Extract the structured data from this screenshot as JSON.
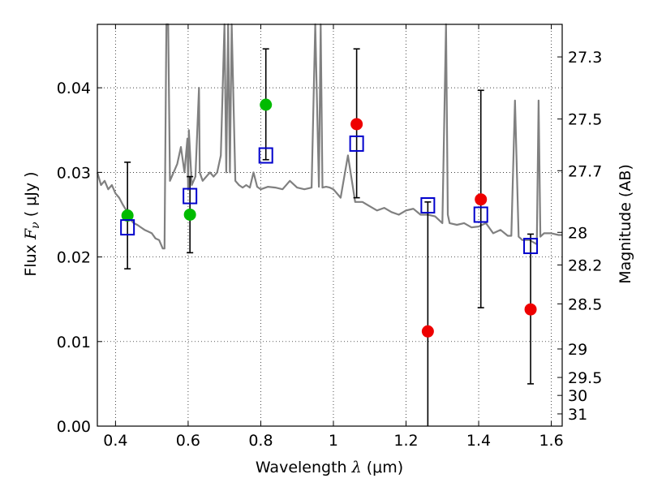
{
  "chart_data": {
    "type": "scatter",
    "title": "",
    "xlabel": "Wavelength  λ (μm)",
    "ylabel": "Flux  F_ν  ( μJy )",
    "ylabel_parts": {
      "prefix": "Flux  ",
      "symbol": "F",
      "subscript": "ν",
      "suffix": "  ( μJy )"
    },
    "xlabel_parts": {
      "prefix": "Wavelength  ",
      "symbol": "λ",
      "suffix": " (μm)"
    },
    "y2label": "Magnitude (AB)",
    "xlim": [
      0.35,
      1.63
    ],
    "ylim": [
      0.0,
      0.0475
    ],
    "grid": true,
    "xticks": [
      0.4,
      0.6,
      0.8,
      1.0,
      1.2,
      1.4,
      1.6
    ],
    "xtick_labels": [
      "0.4",
      "0.6",
      "0.8",
      "1",
      "1.2",
      "1.4",
      "1.6"
    ],
    "yticks": [
      0.0,
      0.01,
      0.02,
      0.03,
      0.04
    ],
    "ytick_labels": [
      "0.00",
      "0.01",
      "0.02",
      "0.03",
      "0.04"
    ],
    "mag_ticks": [
      "27.3",
      "27.5",
      "27.7",
      "28",
      "28.2",
      "28.5",
      "29",
      "29.5",
      "30",
      "31"
    ],
    "colors": {
      "green": "#00bb00",
      "red": "#ee0000",
      "square": "#0000cc",
      "spectrum": "#808080",
      "errorbar": "#000000"
    },
    "series": [
      {
        "type": "errorbar",
        "points": [
          {
            "x": 0.433,
            "y": 0.0249,
            "low": 0.0186,
            "high": 0.0312
          },
          {
            "x": 0.605,
            "y": 0.025,
            "low": 0.0205,
            "high": 0.0295
          },
          {
            "x": 0.814,
            "y": 0.038,
            "low": 0.0315,
            "high": 0.0446
          },
          {
            "x": 1.064,
            "y": 0.0357,
            "low": 0.027,
            "high": 0.0446
          },
          {
            "x": 1.26,
            "y": 0.0112,
            "low": 0.0,
            "high": 0.0265
          },
          {
            "x": 1.406,
            "y": 0.0268,
            "low": 0.014,
            "high": 0.0397
          },
          {
            "x": 1.543,
            "y": 0.0138,
            "low": 0.005,
            "high": 0.0227
          }
        ]
      },
      {
        "marker": "circle",
        "color": "#00bb00",
        "x": [
          0.433,
          0.605,
          0.814
        ],
        "y": [
          0.0249,
          0.025,
          0.038
        ]
      },
      {
        "marker": "circle",
        "color": "#ee0000",
        "x": [
          1.064,
          1.26,
          1.406,
          1.543
        ],
        "y": [
          0.0357,
          0.0112,
          0.0268,
          0.0138
        ]
      },
      {
        "marker": "open-square",
        "color": "#0000cc",
        "x": [
          0.433,
          0.605,
          0.814,
          1.064,
          1.26,
          1.406,
          1.543
        ],
        "y": [
          0.0235,
          0.0272,
          0.032,
          0.0334,
          0.0261,
          0.025,
          0.0213
        ]
      },
      {
        "type": "line",
        "color": "#808080",
        "x": [
          0.35,
          0.36,
          0.37,
          0.38,
          0.39,
          0.4,
          0.41,
          0.42,
          0.43,
          0.44,
          0.45,
          0.46,
          0.47,
          0.48,
          0.49,
          0.5,
          0.51,
          0.52,
          0.53,
          0.535,
          0.54,
          0.545,
          0.55,
          0.56,
          0.57,
          0.58,
          0.59,
          0.598,
          0.6,
          0.602,
          0.61,
          0.62,
          0.63,
          0.632,
          0.64,
          0.65,
          0.66,
          0.67,
          0.68,
          0.69,
          0.7,
          0.705,
          0.71,
          0.715,
          0.72,
          0.73,
          0.74,
          0.75,
          0.76,
          0.77,
          0.78,
          0.79,
          0.8,
          0.82,
          0.84,
          0.86,
          0.88,
          0.9,
          0.92,
          0.94,
          0.95,
          0.96,
          0.965,
          0.97,
          0.98,
          0.99,
          1.0,
          1.02,
          1.04,
          1.06,
          1.08,
          1.1,
          1.12,
          1.14,
          1.16,
          1.18,
          1.2,
          1.22,
          1.24,
          1.26,
          1.28,
          1.3,
          1.31,
          1.315,
          1.32,
          1.34,
          1.36,
          1.38,
          1.4,
          1.42,
          1.44,
          1.46,
          1.48,
          1.49,
          1.5,
          1.51,
          1.52,
          1.54,
          1.56,
          1.565,
          1.57,
          1.58,
          1.6,
          1.62,
          1.63
        ],
        "y": [
          0.03,
          0.0285,
          0.029,
          0.028,
          0.0285,
          0.0275,
          0.027,
          0.0262,
          0.0255,
          0.0245,
          0.024,
          0.0238,
          0.0235,
          0.0232,
          0.023,
          0.0228,
          0.0222,
          0.022,
          0.021,
          0.021,
          0.0475,
          0.0475,
          0.029,
          0.03,
          0.031,
          0.033,
          0.03,
          0.034,
          0.028,
          0.035,
          0.0285,
          0.0295,
          0.04,
          0.03,
          0.029,
          0.0295,
          0.03,
          0.0295,
          0.03,
          0.032,
          0.0475,
          0.03,
          0.0475,
          0.03,
          0.0475,
          0.029,
          0.0285,
          0.0282,
          0.0285,
          0.0282,
          0.03,
          0.0283,
          0.028,
          0.0283,
          0.0282,
          0.028,
          0.029,
          0.0282,
          0.028,
          0.0282,
          0.0475,
          0.0283,
          0.0475,
          0.0282,
          0.0283,
          0.0282,
          0.028,
          0.027,
          0.032,
          0.0265,
          0.0265,
          0.026,
          0.0255,
          0.0258,
          0.0253,
          0.025,
          0.0255,
          0.0257,
          0.025,
          0.025,
          0.0248,
          0.024,
          0.0475,
          0.025,
          0.024,
          0.0238,
          0.024,
          0.0235,
          0.0236,
          0.024,
          0.0228,
          0.0232,
          0.0225,
          0.0225,
          0.0385,
          0.0224,
          0.022,
          0.022,
          0.0215,
          0.0385,
          0.0224,
          0.0228,
          0.0228,
          0.0226,
          0.0226
        ]
      }
    ]
  }
}
